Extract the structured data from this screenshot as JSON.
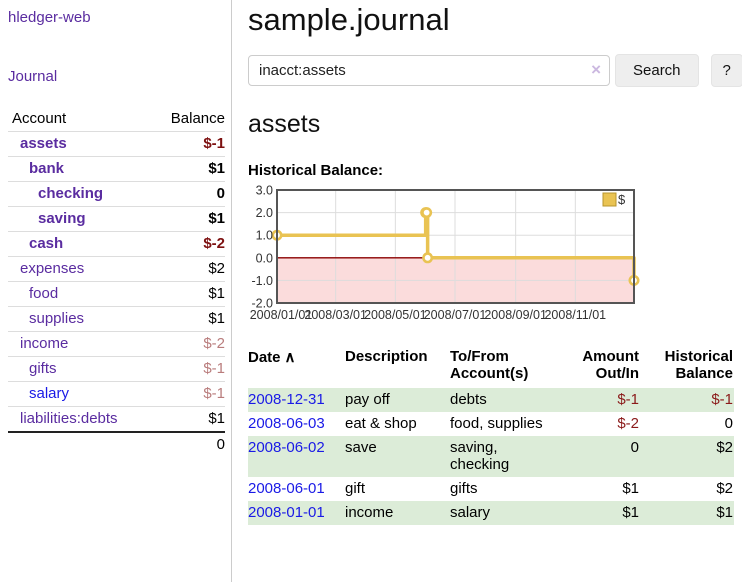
{
  "app": {
    "brand": "hledger-web"
  },
  "sidebar": {
    "journal_link": "Journal",
    "headers": {
      "account": "Account",
      "balance": "Balance"
    },
    "accounts": [
      {
        "name": "assets",
        "depth": 1,
        "balance": "$-1",
        "bold": true,
        "negative": true,
        "unvisited": false
      },
      {
        "name": "bank",
        "depth": 2,
        "balance": "$1",
        "bold": true,
        "negative": false,
        "unvisited": false
      },
      {
        "name": "checking",
        "depth": 3,
        "balance": "0",
        "bold": true,
        "negative": false,
        "unvisited": false
      },
      {
        "name": "saving",
        "depth": 3,
        "balance": "$1",
        "bold": true,
        "negative": false,
        "unvisited": false
      },
      {
        "name": "cash",
        "depth": 2,
        "balance": "$-2",
        "bold": true,
        "negative": true,
        "unvisited": false
      },
      {
        "name": "expenses",
        "depth": 1,
        "balance": "$2",
        "bold": false,
        "negative": false,
        "unvisited": false
      },
      {
        "name": "food",
        "depth": 2,
        "balance": "$1",
        "bold": false,
        "negative": false,
        "unvisited": false
      },
      {
        "name": "supplies",
        "depth": 2,
        "balance": "$1",
        "bold": false,
        "negative": false,
        "unvisited": false
      },
      {
        "name": "income",
        "depth": 1,
        "balance": "$-2",
        "bold": false,
        "negative": true,
        "unvisited": false
      },
      {
        "name": "gifts",
        "depth": 2,
        "balance": "$-1",
        "bold": false,
        "negative": true,
        "unvisited": false
      },
      {
        "name": "salary",
        "depth": 2,
        "balance": "$-1",
        "bold": false,
        "negative": true,
        "unvisited": true
      },
      {
        "name": "liabilities:debts",
        "depth": 1,
        "balance": "$1",
        "bold": false,
        "negative": false,
        "unvisited": false
      }
    ],
    "total": "0"
  },
  "header": {
    "title": "sample.journal"
  },
  "search": {
    "value": "inacct:assets",
    "clear_icon": "×",
    "button_label": "Search",
    "help_label": "?"
  },
  "account_page": {
    "title": "assets",
    "chart_label": "Historical Balance:"
  },
  "chart_data": {
    "type": "line",
    "step": true,
    "title": "Historical Balance",
    "series": [
      {
        "name": "$",
        "color": "#e9c353",
        "points": [
          [
            "2008-01-01",
            1
          ],
          [
            "2008-06-01",
            2
          ],
          [
            "2008-06-02",
            2
          ],
          [
            "2008-06-03",
            0
          ],
          [
            "2008-12-31",
            -1
          ]
        ]
      }
    ],
    "x_range": [
      "2008-01-01",
      "2008-12-31"
    ],
    "ylim": [
      -2,
      3
    ],
    "yticks": [
      3.0,
      2.0,
      1.0,
      0.0,
      -1.0,
      -2.0
    ],
    "xticks": [
      "2008-01-01",
      "2008-03-01",
      "2008-05-01",
      "2008-07-01",
      "2008-09-01",
      "2008-11-01"
    ],
    "xtick_labels": [
      "2008/01/01",
      "2008/03/01",
      "2008/05/01",
      "2008/07/01",
      "2008/09/01",
      "2008/11/01"
    ],
    "grid": true,
    "legend_position": "top-right",
    "legend": [
      {
        "label": "$",
        "color": "#e9c353",
        "border": "#b8962e"
      }
    ],
    "negative_region_color": "#fbdcdc",
    "zero_line_color": "#8b0000",
    "grid_color": "#ddd",
    "border_color": "#555",
    "tick_color": "#333"
  },
  "journal_table": {
    "headers": {
      "date": "Date",
      "sort_icon": "∧",
      "description": "Description",
      "accounts": "To/From Account(s)",
      "amount": "Amount Out/In",
      "balance": "Historical Balance"
    },
    "rows": [
      {
        "date": "2008-12-31",
        "description": "pay off",
        "accounts": "debts",
        "amount": "$-1",
        "amount_negative": true,
        "balance": "$-1",
        "balance_negative": true
      },
      {
        "date": "2008-06-03",
        "description": "eat & shop",
        "accounts": "food, supplies",
        "amount": "$-2",
        "amount_negative": true,
        "balance": "0",
        "balance_negative": false
      },
      {
        "date": "2008-06-02",
        "description": "save",
        "accounts": "saving, checking",
        "amount": "0",
        "amount_negative": false,
        "balance": "$2",
        "balance_negative": false
      },
      {
        "date": "2008-06-01",
        "description": "gift",
        "accounts": "gifts",
        "amount": "$1",
        "amount_negative": false,
        "balance": "$2",
        "balance_negative": false
      },
      {
        "date": "2008-01-01",
        "description": "income",
        "accounts": "salary",
        "amount": "$1",
        "amount_negative": false,
        "balance": "$1",
        "balance_negative": false
      }
    ]
  }
}
